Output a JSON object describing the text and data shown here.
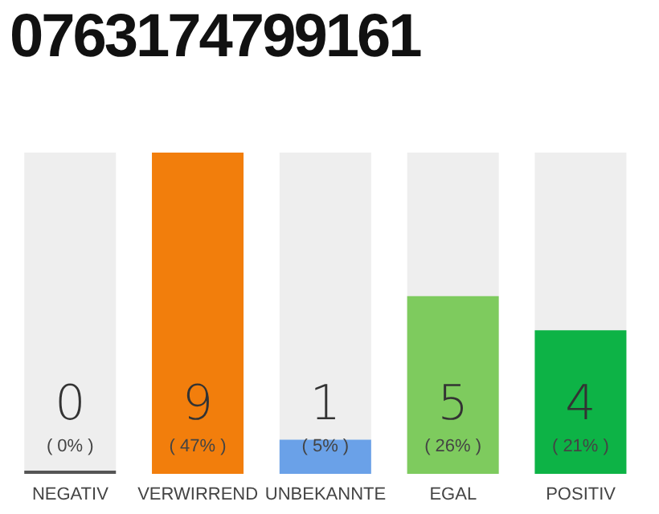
{
  "chart_data": {
    "type": "bar",
    "title": "0763174799161",
    "categories": [
      "NEGATIV",
      "VERWIRREND",
      "UNBEKANNTE",
      "EGAL",
      "POSITIV"
    ],
    "values": [
      0,
      47,
      5,
      26,
      21
    ],
    "colors": [
      "#555555",
      "#f27e0c",
      "#6aa1e8",
      "#7ecb5e",
      "#0db346"
    ],
    "value_labels": [
      "( 0% )",
      "( 47% )",
      "( 5% )",
      "( 26% )",
      "( 21% )"
    ],
    "annotations": [
      "0",
      "9",
      "1",
      "5",
      "4"
    ],
    "tick_labels": "x"
  }
}
